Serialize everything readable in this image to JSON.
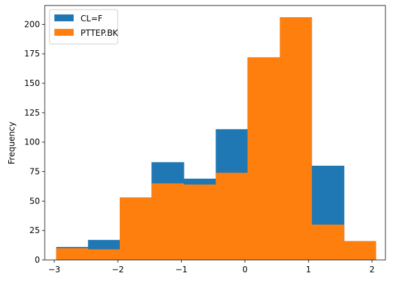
{
  "chart_data": {
    "type": "bar",
    "subtype": "overlaid-histogram",
    "title": "",
    "xlabel": "",
    "ylabel": "Frequency",
    "xlim": [
      -3.15,
      2.21
    ],
    "ylim": [
      0,
      216
    ],
    "xticks": [
      -3,
      -2,
      -1,
      0,
      1,
      2
    ],
    "yticks": [
      0,
      25,
      50,
      75,
      100,
      125,
      150,
      175,
      200
    ],
    "grid": false,
    "legend_placement": "top-left",
    "bin_edges": [
      -2.97,
      -2.47,
      -1.97,
      -1.47,
      -0.96,
      -0.46,
      0.04,
      0.55,
      1.05,
      1.56,
      2.06
    ],
    "series": [
      {
        "name": "CL=F",
        "color": "#1f77b4",
        "values": [
          11,
          17,
          53,
          83,
          69,
          111,
          172,
          206,
          80,
          16
        ]
      },
      {
        "name": "PTTEP.BK",
        "color": "#ff7f0e",
        "values": [
          10,
          9,
          53,
          65,
          64,
          74,
          172,
          206,
          30,
          16
        ]
      }
    ]
  }
}
